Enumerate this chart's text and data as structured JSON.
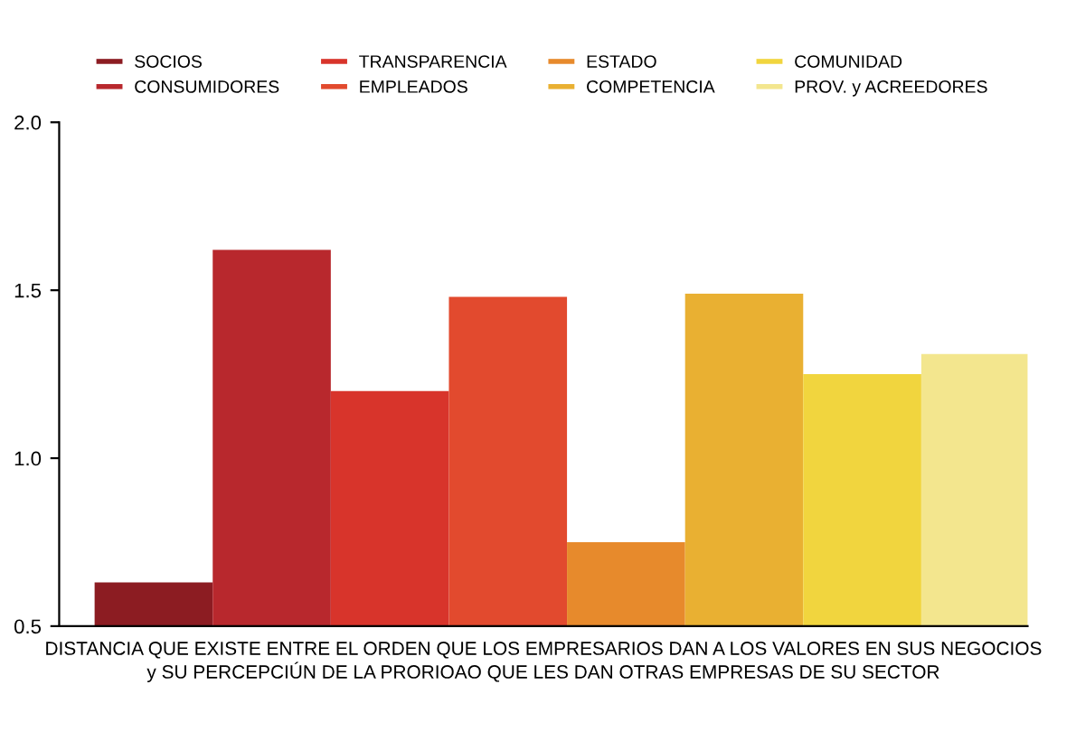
{
  "chart_data": {
    "type": "bar",
    "stacked": true,
    "categories": [
      null,
      null,
      null,
      null,
      null,
      null,
      null,
      null
    ],
    "series": [
      {
        "name": "SOCIOS",
        "color": "#8c1c22",
        "values": [
          0.63,
          null,
          null,
          null,
          null,
          null,
          null,
          null
        ]
      },
      {
        "name": "CONSUMIDORES",
        "color": "#b8282d",
        "values": [
          null,
          1.62,
          null,
          null,
          null,
          null,
          null,
          null
        ]
      },
      {
        "name": "TRANSPARENCIA",
        "color": "#d8342b",
        "values": [
          null,
          null,
          1.2,
          null,
          null,
          null,
          null,
          null
        ]
      },
      {
        "name": "EMPLEADOS",
        "color": "#e24a2e",
        "values": [
          null,
          null,
          null,
          1.48,
          null,
          null,
          null,
          null
        ]
      },
      {
        "name": "ESTADO",
        "color": "#e78a2c",
        "values": [
          null,
          null,
          null,
          null,
          0.75,
          null,
          null,
          null
        ]
      },
      {
        "name": "COMPETENCIA",
        "color": "#e9b032",
        "values": [
          null,
          null,
          null,
          null,
          null,
          1.49,
          null,
          null
        ]
      },
      {
        "name": "COMUNIDAD",
        "color": "#f1d53e",
        "values": [
          null,
          null,
          null,
          null,
          null,
          null,
          1.25,
          null
        ]
      },
      {
        "name": "PROV. y ACREEDORES",
        "color": "#f3e68e",
        "values": [
          null,
          null,
          null,
          null,
          null,
          null,
          null,
          1.31
        ]
      }
    ],
    "ylim": [
      0.5,
      2.0
    ],
    "yticks": [
      {
        "value": 0.5,
        "label": "0.5"
      },
      {
        "value": 1.0,
        "label": "1.0"
      },
      {
        "value": 1.5,
        "label": "1.5"
      },
      {
        "value": 2.0,
        "label": "2.0"
      }
    ],
    "xlabel": "DISTANCIA QUE EXISTE ENTRE EL ORDEN QUE LOS EMPRESARIOS DAN A LOS VALORES EN SUS NEGOCIOS\ny SU PERCEPCIÚN DE LA PRORIOAO QUE LES DAN OTRAS EMPRESAS DE SU SECTOR",
    "legend": "top",
    "grid": false,
    "tick_labels": "y"
  }
}
